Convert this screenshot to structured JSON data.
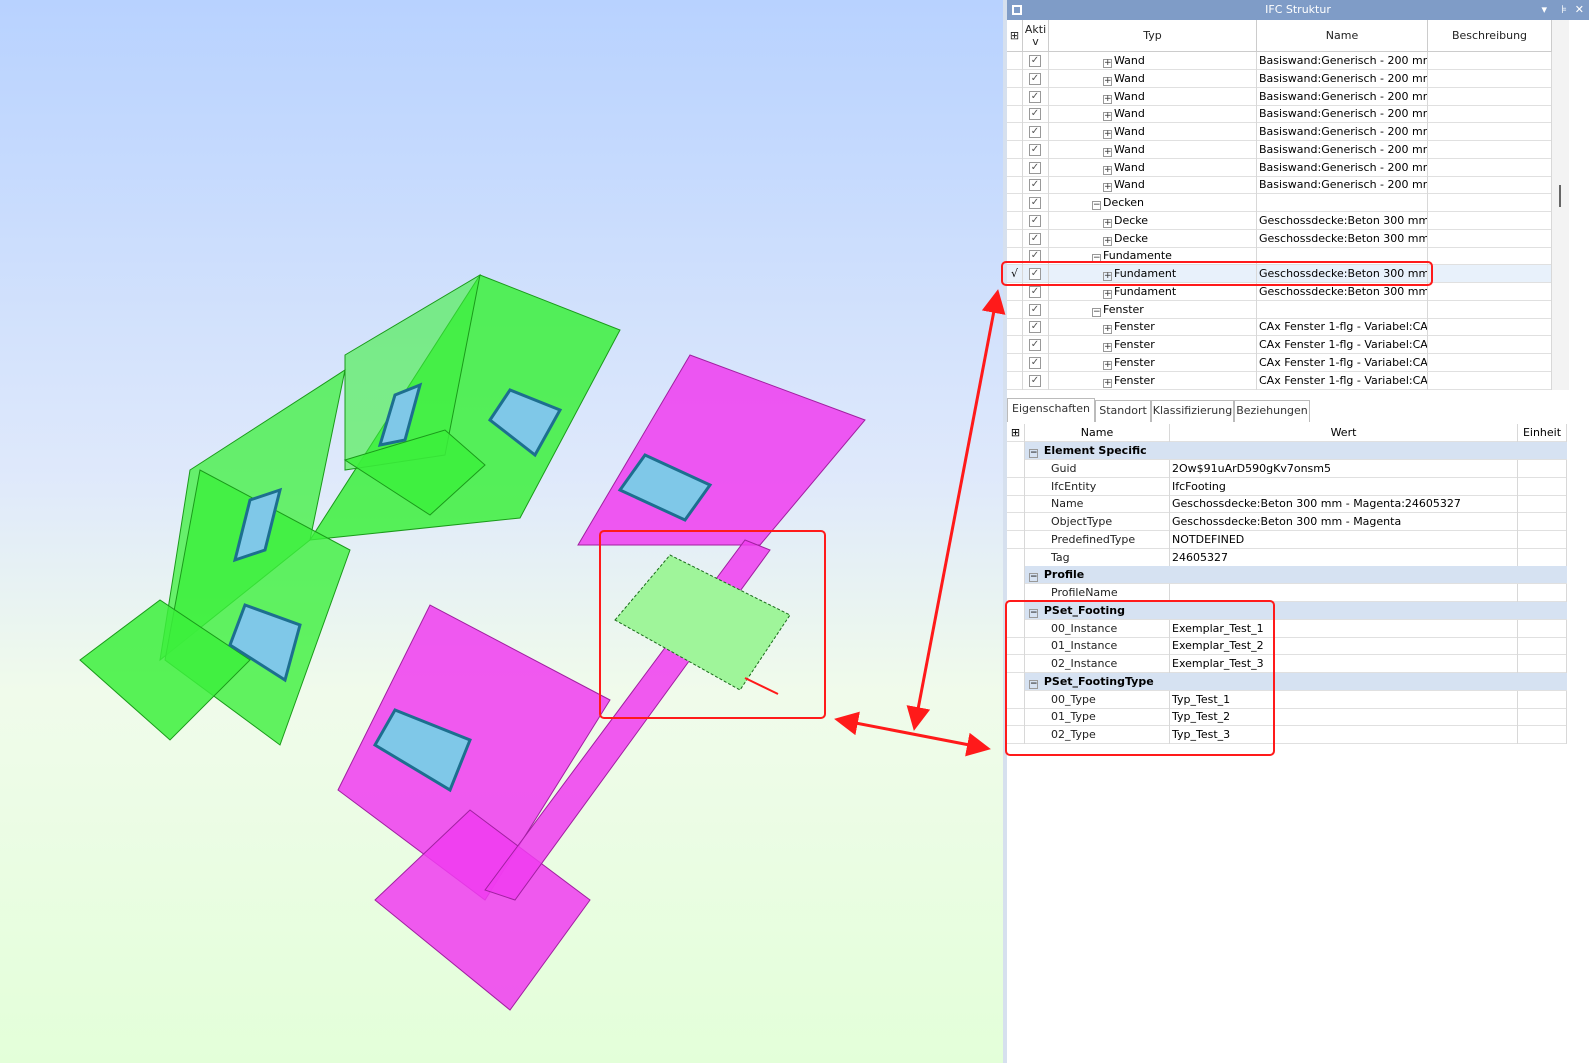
{
  "viewport": {
    "background_top": "#b8d2ff",
    "background_bottom": "#e3ffd9",
    "colors": {
      "walls_green": "#3cf03c",
      "walls_magenta": "#f03cf0",
      "windows": "#7fc8e8",
      "annotation": "#ff1a1a"
    }
  },
  "panel": {
    "title": "IFC Struktur",
    "columns": {
      "aktiv": "Akti v",
      "typ": "Typ",
      "name": "Name",
      "beschreibung": "Beschreibung"
    },
    "rows": [
      {
        "level": 3,
        "expander": "+",
        "typ": "Wand",
        "name": "Basiswand:Generisch - 200 mm -...",
        "checked": true
      },
      {
        "level": 3,
        "expander": "+",
        "typ": "Wand",
        "name": "Basiswand:Generisch - 200 mm -...",
        "checked": true
      },
      {
        "level": 3,
        "expander": "+",
        "typ": "Wand",
        "name": "Basiswand:Generisch - 200 mm -...",
        "checked": true
      },
      {
        "level": 3,
        "expander": "+",
        "typ": "Wand",
        "name": "Basiswand:Generisch - 200 mm -...",
        "checked": true
      },
      {
        "level": 3,
        "expander": "+",
        "typ": "Wand",
        "name": "Basiswand:Generisch - 200 mm -...",
        "checked": true
      },
      {
        "level": 3,
        "expander": "+",
        "typ": "Wand",
        "name": "Basiswand:Generisch - 200 mm -...",
        "checked": true
      },
      {
        "level": 3,
        "expander": "+",
        "typ": "Wand",
        "name": "Basiswand:Generisch - 200 mm -...",
        "checked": true
      },
      {
        "level": 3,
        "expander": "+",
        "typ": "Wand",
        "name": "Basiswand:Generisch - 200 mm -...",
        "checked": true
      },
      {
        "level": 2,
        "expander": "-",
        "typ": "Decken",
        "name": "",
        "checked": true
      },
      {
        "level": 3,
        "expander": "+",
        "typ": "Decke",
        "name": "Geschossdecke:Beton 300 mm - ...",
        "checked": true
      },
      {
        "level": 3,
        "expander": "+",
        "typ": "Decke",
        "name": "Geschossdecke:Beton 300 mm - ...",
        "checked": true
      },
      {
        "level": 2,
        "expander": "-",
        "typ": "Fundamente",
        "name": "",
        "checked": true
      },
      {
        "level": 3,
        "expander": "+",
        "typ": "Fundament",
        "name": "Geschossdecke:Beton 300 mm - ...",
        "checked": true,
        "selected": true,
        "marker": "√"
      },
      {
        "level": 3,
        "expander": "+",
        "typ": "Fundament",
        "name": "Geschossdecke:Beton 300 mm - ...",
        "checked": true
      },
      {
        "level": 2,
        "expander": "-",
        "typ": "Fenster",
        "name": "",
        "checked": true
      },
      {
        "level": 3,
        "expander": "+",
        "typ": "Fenster",
        "name": "CAx Fenster 1-flg - Variabel:CA...",
        "checked": true
      },
      {
        "level": 3,
        "expander": "+",
        "typ": "Fenster",
        "name": "CAx Fenster 1-flg - Variabel:CA...",
        "checked": true
      },
      {
        "level": 3,
        "expander": "+",
        "typ": "Fenster",
        "name": "CAx Fenster 1-flg - Variabel:CA...",
        "checked": true
      },
      {
        "level": 3,
        "expander": "+",
        "typ": "Fenster",
        "name": "CAx Fenster 1-flg - Variabel:CA...",
        "checked": true
      }
    ],
    "tabs": [
      "Eigenschaften",
      "Standort",
      "Klassifizierung",
      "Beziehungen"
    ],
    "active_tab": "Eigenschaften",
    "prop_columns": {
      "name": "Name",
      "wert": "Wert",
      "einheit": "Einheit"
    },
    "properties": [
      {
        "group": "Element Specific"
      },
      {
        "name": "Guid",
        "value": "2Ow$91uArD590gKv7onsm5"
      },
      {
        "name": "IfcEntity",
        "value": "IfcFooting"
      },
      {
        "name": "Name",
        "value": "Geschossdecke:Beton 300 mm - Magenta:24605327"
      },
      {
        "name": "ObjectType",
        "value": "Geschossdecke:Beton 300 mm - Magenta"
      },
      {
        "name": "PredefinedType",
        "value": "NOTDEFINED"
      },
      {
        "name": "Tag",
        "value": "24605327"
      },
      {
        "group": "Profile"
      },
      {
        "name": "ProfileName",
        "value": ""
      },
      {
        "group": "PSet_Footing"
      },
      {
        "name": "00_Instance",
        "value": "Exemplar_Test_1"
      },
      {
        "name": "01_Instance",
        "value": "Exemplar_Test_2"
      },
      {
        "name": "02_Instance",
        "value": "Exemplar_Test_3"
      },
      {
        "group": "PSet_FootingType"
      },
      {
        "name": "00_Type",
        "value": "Typ_Test_1"
      },
      {
        "name": "01_Type",
        "value": "Typ_Test_2"
      },
      {
        "name": "02_Type",
        "value": "Typ_Test_3"
      }
    ]
  }
}
